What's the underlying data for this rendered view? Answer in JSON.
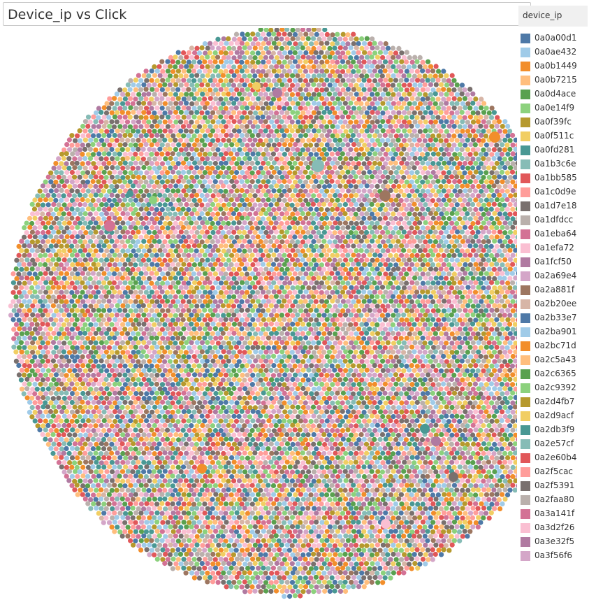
{
  "chart_data": {
    "type": "scatter",
    "title": "Device_ip vs Click",
    "legend": {
      "title": "device_ip",
      "placement": "right",
      "items": [
        {
          "label": "0a0a00d1",
          "color": "#4e79a7"
        },
        {
          "label": "0a0ae432",
          "color": "#a0cbe8"
        },
        {
          "label": "0a0b1449",
          "color": "#f28e2b"
        },
        {
          "label": "0a0b7215",
          "color": "#ffbe7d"
        },
        {
          "label": "0a0d4ace",
          "color": "#59a14f"
        },
        {
          "label": "0a0e14f9",
          "color": "#8cd17d"
        },
        {
          "label": "0a0f39fc",
          "color": "#b6992d"
        },
        {
          "label": "0a0f511c",
          "color": "#f1ce63"
        },
        {
          "label": "0a0fd281",
          "color": "#499894"
        },
        {
          "label": "0a1b3c6e",
          "color": "#86bcb6"
        },
        {
          "label": "0a1bb585",
          "color": "#e15759"
        },
        {
          "label": "0a1c0d9e",
          "color": "#ff9d9a"
        },
        {
          "label": "0a1d7e18",
          "color": "#79706e"
        },
        {
          "label": "0a1dfdcc",
          "color": "#bab0ac"
        },
        {
          "label": "0a1eba64",
          "color": "#d37295"
        },
        {
          "label": "0a1efa72",
          "color": "#fabfd2"
        },
        {
          "label": "0a1fcf50",
          "color": "#b07aa1"
        },
        {
          "label": "0a2a69e4",
          "color": "#d4a6c8"
        },
        {
          "label": "0a2a881f",
          "color": "#9d7660"
        },
        {
          "label": "0a2b20ee",
          "color": "#d7b5a6"
        },
        {
          "label": "0a2b33e7",
          "color": "#4e79a7"
        },
        {
          "label": "0a2ba901",
          "color": "#a0cbe8"
        },
        {
          "label": "0a2bc71d",
          "color": "#f28e2b"
        },
        {
          "label": "0a2c5a43",
          "color": "#ffbe7d"
        },
        {
          "label": "0a2c6365",
          "color": "#59a14f"
        },
        {
          "label": "0a2c9392",
          "color": "#8cd17d"
        },
        {
          "label": "0a2d4fb7",
          "color": "#b6992d"
        },
        {
          "label": "0a2d9acf",
          "color": "#f1ce63"
        },
        {
          "label": "0a2db3f9",
          "color": "#499894"
        },
        {
          "label": "0a2e57cf",
          "color": "#86bcb6"
        },
        {
          "label": "0a2e60b4",
          "color": "#e15759"
        },
        {
          "label": "0a2f5cac",
          "color": "#ff9d9a"
        },
        {
          "label": "0a2f5391",
          "color": "#79706e"
        },
        {
          "label": "0a2faa80",
          "color": "#bab0ac"
        },
        {
          "label": "0a3a141f",
          "color": "#d37295"
        },
        {
          "label": "0a3d2f26",
          "color": "#fabfd2"
        },
        {
          "label": "0a3e32f5",
          "color": "#b07aa1"
        },
        {
          "label": "0a3f56f6",
          "color": "#d4a6c8"
        }
      ]
    },
    "mark": "packed-circles",
    "mark_count_estimate": 5000,
    "highlighted_marks": [
      {
        "color_index": 9
      },
      {
        "color_index": 2
      },
      {
        "color_index": 18
      },
      {
        "color_index": 16
      },
      {
        "color_index": 14
      },
      {
        "color_index": 7
      },
      {
        "color_index": 2
      },
      {
        "color_index": 12
      },
      {
        "color_index": 28
      },
      {
        "color_index": 16
      },
      {
        "color_index": 15
      },
      {
        "color_index": 5
      },
      {
        "color_index": 8
      }
    ]
  }
}
